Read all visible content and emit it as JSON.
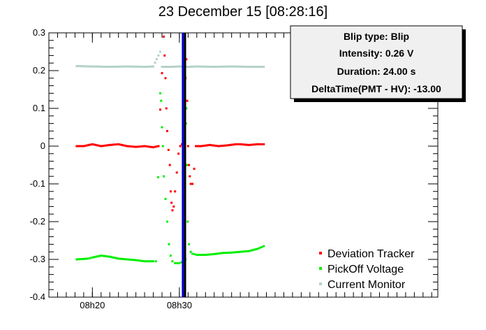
{
  "chart_data": {
    "type": "scatter",
    "title": "23 December 15 [08:28:16]",
    "xlabel": "",
    "ylabel": "",
    "ylim": [
      -0.4,
      0.3
    ],
    "xlim": [
      -5.0,
      39.7
    ],
    "x_unit": "minutes after 08h20",
    "x_ticks": [
      {
        "value": 0,
        "label": "08h20"
      },
      {
        "value": 10,
        "label": "08h30"
      }
    ],
    "y_ticks": [
      -0.4,
      -0.3,
      -0.2,
      -0.1,
      0,
      0.1,
      0.2,
      0.3
    ],
    "y_tick_labels": [
      "-0.4",
      "-0.3",
      "-0.2",
      "-0.1",
      "0",
      "0.1",
      "0.2",
      "0.3"
    ],
    "grid": false,
    "legend_position": "bottom-right",
    "series": [
      {
        "name": "Deviation Tracker",
        "color": "#ff0000",
        "marker": "small-square",
        "points": [
          [
            -1.8,
            0.0
          ],
          [
            -1.0,
            0.0
          ],
          [
            0.0,
            0.005
          ],
          [
            1.0,
            0.0
          ],
          [
            2.0,
            0.003
          ],
          [
            3.0,
            0.005
          ],
          [
            4.0,
            0.0
          ],
          [
            5.0,
            -0.002
          ],
          [
            6.0,
            0.0
          ],
          [
            7.0,
            -0.003
          ],
          [
            7.6,
            0.0
          ],
          [
            8.2,
            0.29
          ],
          [
            8.3,
            0.24
          ],
          [
            8.4,
            0.18
          ],
          [
            8.5,
            0.1
          ],
          [
            8.6,
            0.04
          ],
          [
            8.75,
            -0.01
          ],
          [
            8.9,
            -0.05
          ],
          [
            9.0,
            -0.12
          ],
          [
            9.1,
            -0.15
          ],
          [
            9.2,
            -0.17
          ],
          [
            9.35,
            -0.16
          ],
          [
            9.5,
            -0.12
          ],
          [
            9.7,
            -0.07
          ],
          [
            9.9,
            -0.02
          ],
          [
            10.1,
            0.0
          ],
          [
            10.3,
            0.005
          ],
          [
            10.6,
            0.008
          ],
          [
            10.7,
            0.18
          ],
          [
            10.8,
            0.23
          ],
          [
            10.9,
            0.12
          ],
          [
            11.0,
            0.0
          ],
          [
            11.1,
            -0.05
          ],
          [
            11.2,
            -0.08
          ],
          [
            11.3,
            -0.1
          ],
          [
            11.5,
            -0.1
          ],
          [
            11.7,
            -0.06
          ],
          [
            11.9,
            0.0
          ],
          [
            12.5,
            0.0
          ],
          [
            13.5,
            0.003
          ],
          [
            14.5,
            0.0
          ],
          [
            15.5,
            0.002
          ],
          [
            16.5,
            0.005
          ],
          [
            17.0,
            0.005
          ],
          [
            18.0,
            0.003
          ],
          [
            19.0,
            0.005
          ],
          [
            19.7,
            0.005
          ]
        ]
      },
      {
        "name": "PickOff Voltage",
        "color": "#00ee00",
        "marker": "small-square",
        "points": [
          [
            -1.8,
            -0.3
          ],
          [
            -0.5,
            -0.298
          ],
          [
            0.0,
            -0.295
          ],
          [
            1.0,
            -0.29
          ],
          [
            2.0,
            -0.293
          ],
          [
            3.0,
            -0.298
          ],
          [
            4.0,
            -0.3
          ],
          [
            5.0,
            -0.302
          ],
          [
            6.0,
            -0.305
          ],
          [
            7.0,
            -0.305
          ],
          [
            7.3,
            -0.305
          ],
          [
            7.8,
            0.14
          ],
          [
            7.9,
            0.12
          ],
          [
            8.0,
            0.05
          ],
          [
            8.1,
            0.0
          ],
          [
            8.2,
            -0.08
          ],
          [
            8.4,
            -0.14
          ],
          [
            8.6,
            -0.2
          ],
          [
            8.8,
            -0.26
          ],
          [
            9.0,
            -0.29
          ],
          [
            9.2,
            -0.305
          ],
          [
            9.5,
            -0.31
          ],
          [
            10.0,
            -0.31
          ],
          [
            10.5,
            -0.305
          ],
          [
            10.7,
            -0.3
          ],
          [
            10.75,
            0.06
          ],
          [
            10.8,
            0.1
          ],
          [
            10.85,
            -0.05
          ],
          [
            10.95,
            -0.2
          ],
          [
            11.1,
            -0.26
          ],
          [
            11.3,
            -0.28
          ],
          [
            11.5,
            -0.285
          ],
          [
            12.0,
            -0.288
          ],
          [
            13.0,
            -0.288
          ],
          [
            14.0,
            -0.286
          ],
          [
            15.0,
            -0.283
          ],
          [
            16.0,
            -0.282
          ],
          [
            17.0,
            -0.28
          ],
          [
            18.0,
            -0.278
          ],
          [
            19.0,
            -0.272
          ],
          [
            19.7,
            -0.265
          ]
        ]
      },
      {
        "name": "Current Monitor",
        "color": "#b4d2c8",
        "marker": "small-square",
        "points": [
          [
            -1.8,
            0.212
          ],
          [
            0.0,
            0.211
          ],
          [
            2.0,
            0.21
          ],
          [
            4.0,
            0.211
          ],
          [
            6.0,
            0.21
          ],
          [
            7.0,
            0.211
          ],
          [
            7.8,
            0.25
          ],
          [
            8.0,
            0.21
          ],
          [
            9.0,
            0.21
          ],
          [
            10.0,
            0.211
          ],
          [
            11.0,
            0.21
          ],
          [
            12.0,
            0.211
          ],
          [
            14.0,
            0.21
          ],
          [
            16.0,
            0.211
          ],
          [
            18.0,
            0.21
          ],
          [
            19.7,
            0.21
          ]
        ]
      }
    ],
    "vertical_lines": [
      {
        "x": 10.4,
        "color": "#0000cc"
      },
      {
        "x": 10.65,
        "color": "#000000"
      }
    ]
  },
  "info_box": {
    "title": "Blip type: Blip",
    "lines": [
      "Intensity: 0.26 V",
      "Duration: 24.00 s",
      "DeltaTime(PMT - HV): -13.00"
    ]
  },
  "legend": {
    "entries": [
      {
        "label": "Deviation Tracker",
        "color": "#ff0000"
      },
      {
        "label": "PickOff Voltage",
        "color": "#00ee00"
      },
      {
        "label": "Current Monitor",
        "color": "#b4d2c8"
      }
    ]
  }
}
